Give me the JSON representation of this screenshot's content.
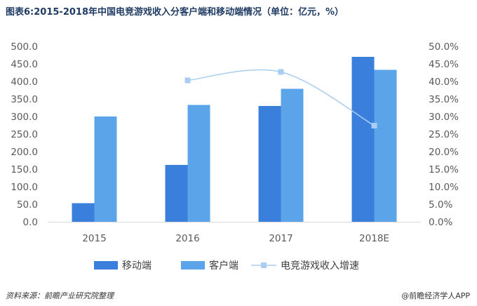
{
  "title": "图表6:2015-2018年中国电竞游戏收入分客户端和移动端情况（单位：亿元，%）",
  "footer": {
    "source": "资料来源：前瞻产业研究院整理",
    "brand": "@前瞻经济学人APP"
  },
  "colors": {
    "mobile": "#3a7fdc",
    "client": "#5ca4ea",
    "growth": "#a9cdf2",
    "axis_text": "#595959"
  },
  "chart_data": {
    "type": "bar",
    "title": "图表6:2015-2018年中国电竞游戏收入分客户端和移动端情况（单位：亿元，%）",
    "categories": [
      "2015",
      "2016",
      "2017",
      "2018E"
    ],
    "series": [
      {
        "name": "移动端",
        "kind": "bar",
        "axis": "left",
        "values": [
          53,
          162,
          330,
          470
        ]
      },
      {
        "name": "客户端",
        "kind": "bar",
        "axis": "left",
        "values": [
          300,
          333,
          379,
          433
        ]
      },
      {
        "name": "电竞游戏收入增速",
        "kind": "line",
        "axis": "right",
        "values": [
          null,
          40.3,
          42.7,
          27.4
        ]
      }
    ],
    "y_left": {
      "min": 0,
      "max": 500,
      "step": 50,
      "tick_labels": [
        "0.0",
        "50.0",
        "100.0",
        "150.0",
        "200.0",
        "250.0",
        "300.0",
        "350.0",
        "400.0",
        "450.0",
        "500.0"
      ]
    },
    "y_right": {
      "min": 0,
      "max": 50,
      "step": 5,
      "tick_labels": [
        "0.0%",
        "5.0%",
        "10.0%",
        "15.0%",
        "20.0%",
        "25.0%",
        "30.0%",
        "35.0%",
        "40.0%",
        "45.0%",
        "50.0%"
      ]
    },
    "legend": [
      "移动端",
      "客户端",
      "电竞游戏收入增速"
    ],
    "legend_position": "bottom",
    "grid": false
  }
}
